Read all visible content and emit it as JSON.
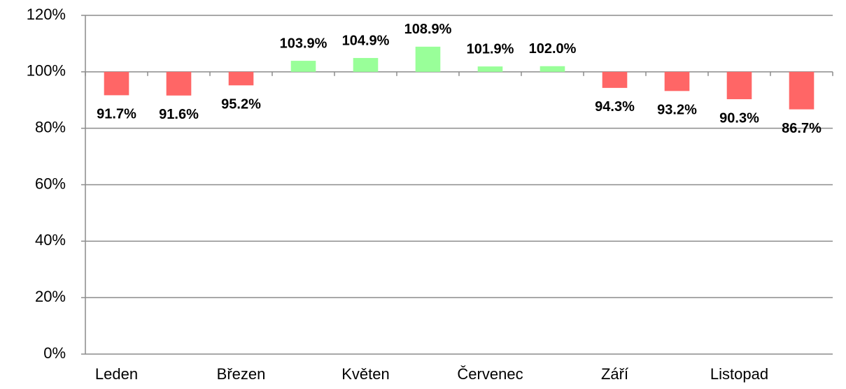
{
  "chart_data": {
    "type": "bar",
    "categories": [
      "Leden",
      null,
      "Březen",
      null,
      "Květen",
      null,
      "Červenec",
      null,
      "Září",
      null,
      "Listopad",
      null
    ],
    "values": [
      91.7,
      91.6,
      95.2,
      103.9,
      104.9,
      108.9,
      101.9,
      102.0,
      94.3,
      93.2,
      90.3,
      86.7
    ],
    "value_labels": [
      "91.7%",
      "91.6%",
      "95.2%",
      "103.9%",
      "104.9%",
      "108.9%",
      "101.9%",
      "102.0%",
      "94.3%",
      "93.2%",
      "90.3%",
      "86.7%"
    ],
    "baseline": 100,
    "colors": {
      "below": "#ff6666",
      "above": "#99ff99"
    },
    "ylim": [
      0,
      120
    ],
    "yticks": [
      {
        "value": 0,
        "label": "0%"
      },
      {
        "value": 20,
        "label": "20%"
      },
      {
        "value": 40,
        "label": "40%"
      },
      {
        "value": 60,
        "label": "60%"
      },
      {
        "value": 80,
        "label": "80%"
      },
      {
        "value": 100,
        "label": "100%"
      },
      {
        "value": 120,
        "label": "120%"
      }
    ],
    "grid": true
  }
}
